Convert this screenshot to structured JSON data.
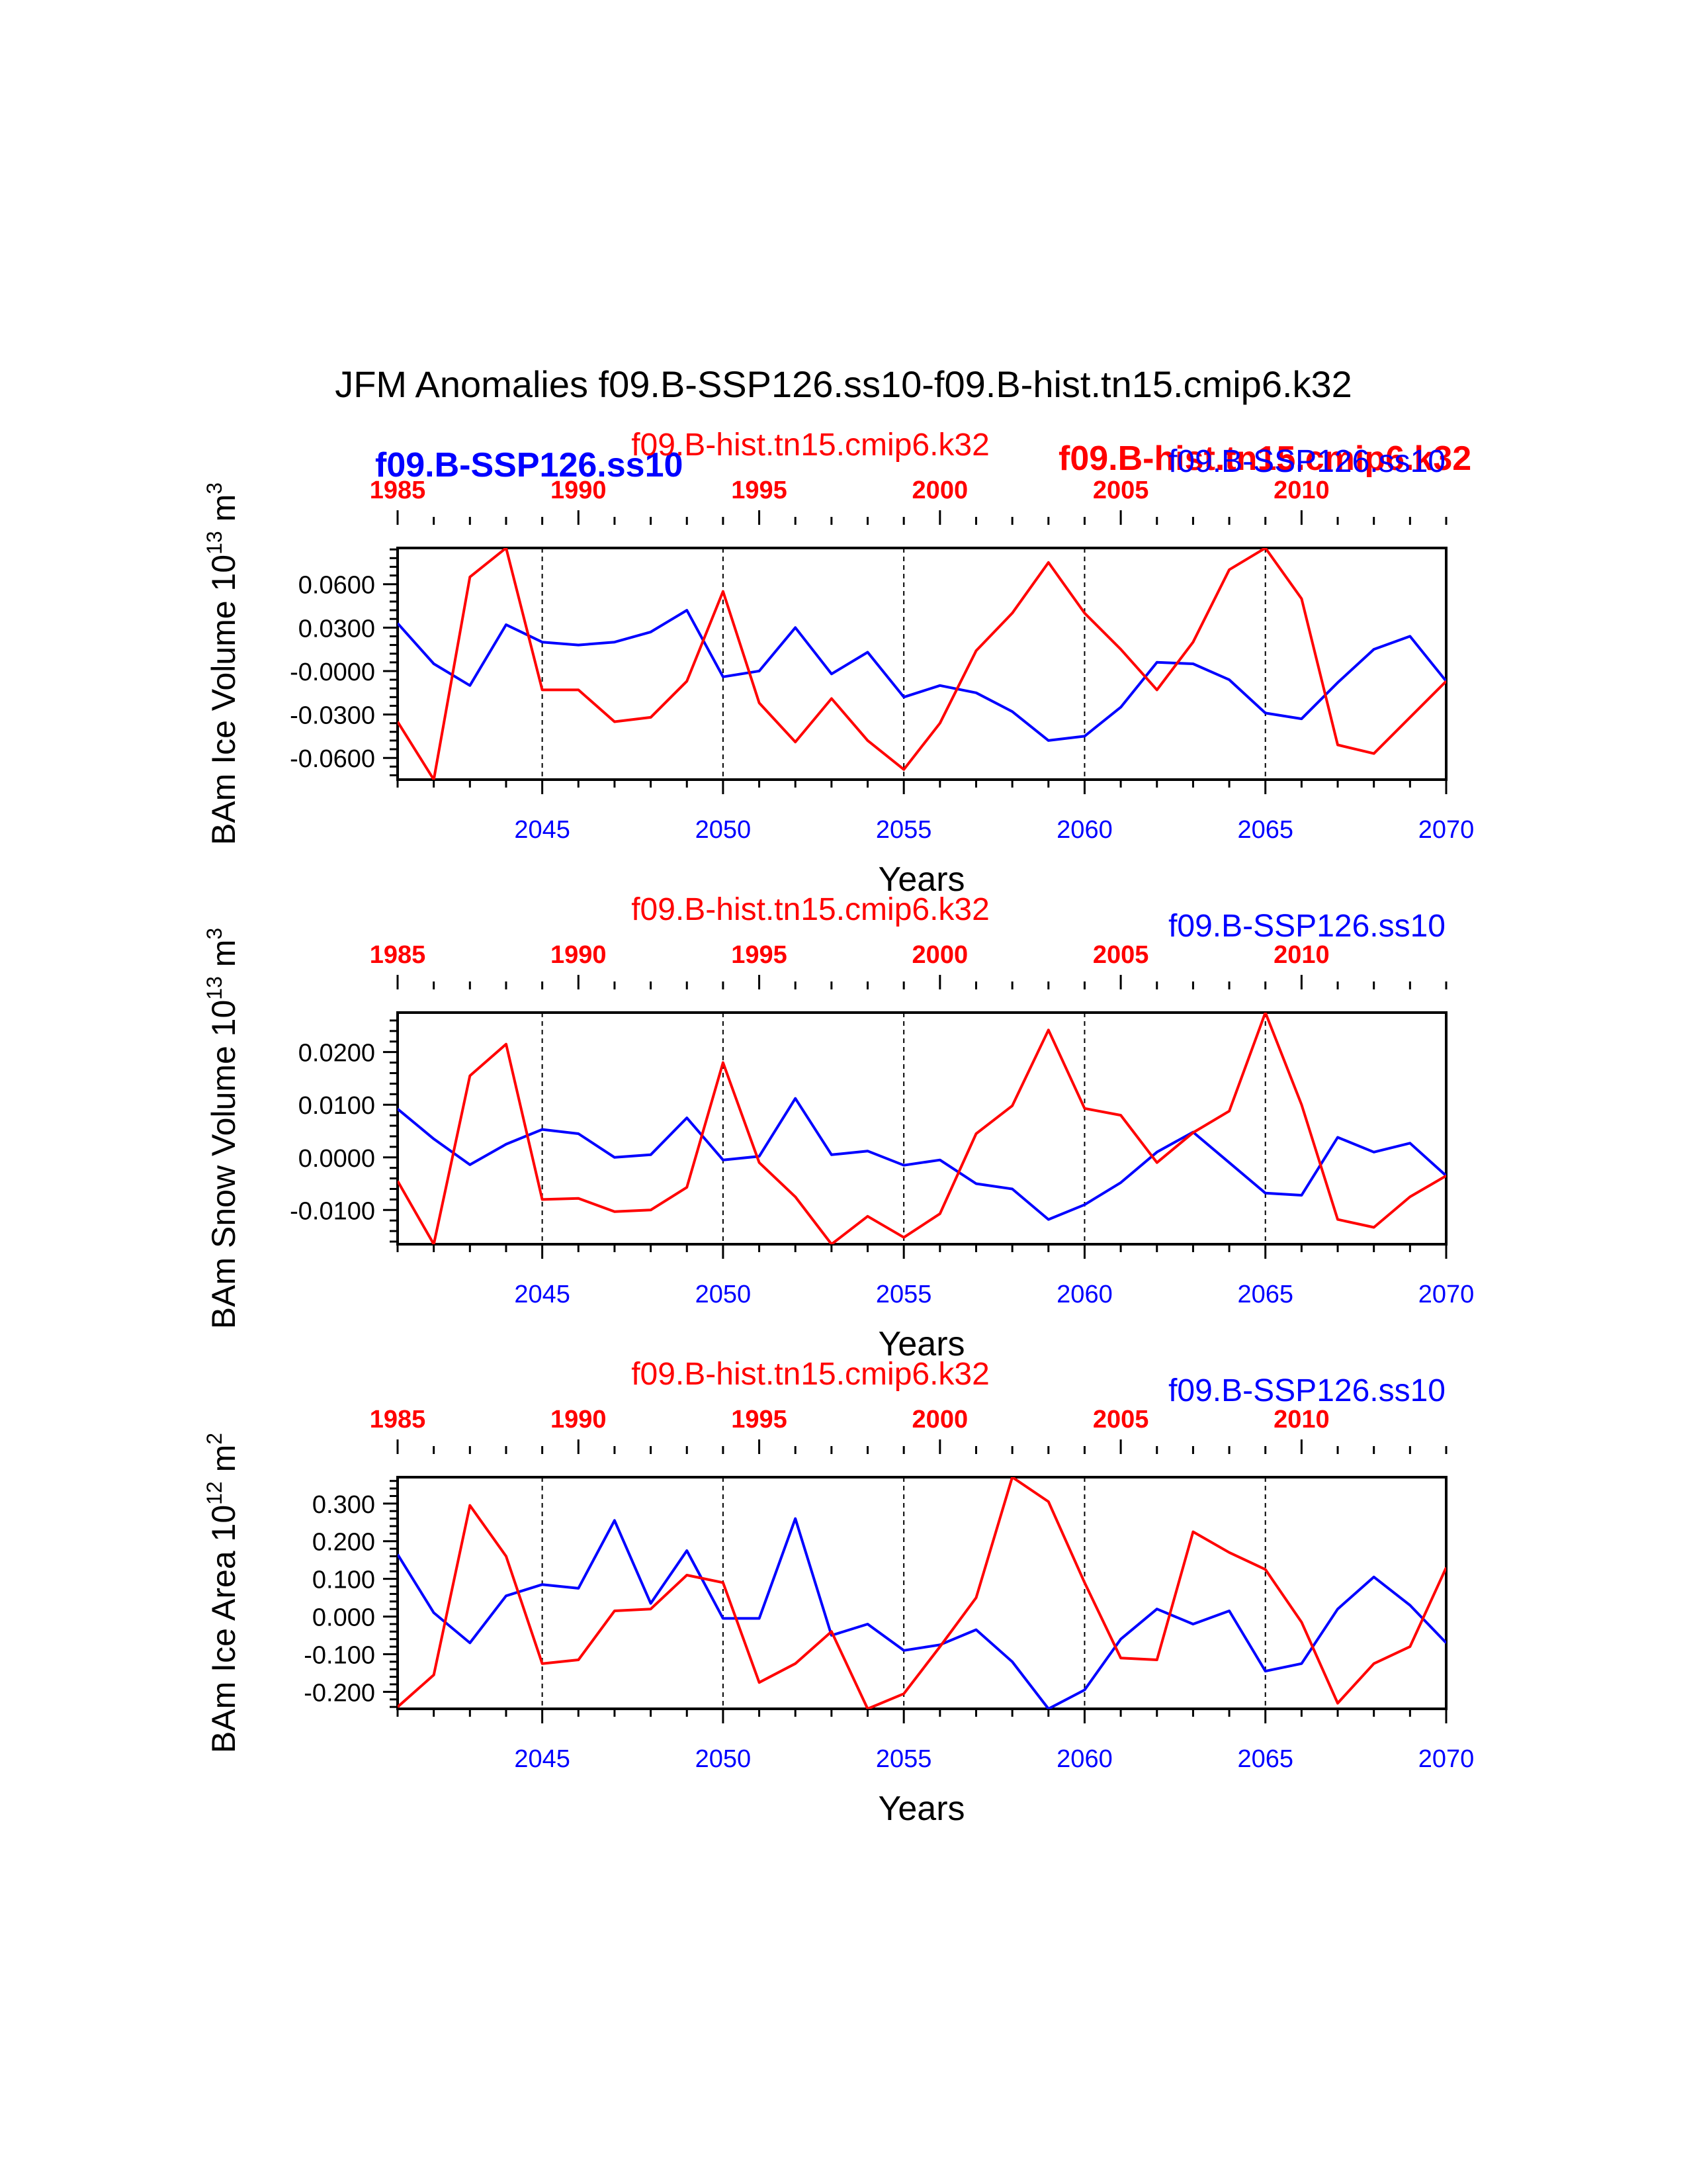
{
  "title": "JFM Anomalies f09.B-SSP126.ss10-f09.B-hist.tn15.cmip6.k32",
  "colors": {
    "future": "#0000ff",
    "hist": "#ff0000",
    "axis": "#000000"
  },
  "legend_overlay": {
    "future_label": "f09.B-SSP126.ss10",
    "hist_label": "f09.B-hist.tn15.cmip6.k32"
  },
  "chart_data": [
    {
      "type": "line",
      "ylabel": "BAm Ice Volume 10^13 m^3",
      "ylabel_main": "BAm Ice Volume 10",
      "ylabel_exp": "13",
      "ylabel_unit": "m",
      "ylabel_unit_exp": "3",
      "xlabel": "Years",
      "ylim": [
        -0.075,
        0.085
      ],
      "yticks": [
        0.06,
        0.03,
        0.0,
        -0.03,
        -0.06
      ],
      "ytick_labels": [
        "0.0600",
        "0.0300",
        "-0.0000",
        "-0.0300",
        "-0.0600"
      ],
      "top_label_hist": "f09.B-hist.tn15.cmip6.k32",
      "top_label_future": "f09.B-SSP126.ss10",
      "series": [
        {
          "name": "f09.B-SSP126.ss10",
          "color": "#0000ff",
          "axis": "bottom",
          "x": [
            2041,
            2042,
            2043,
            2044,
            2045,
            2046,
            2047,
            2048,
            2049,
            2050,
            2051,
            2052,
            2053,
            2054,
            2055,
            2056,
            2057,
            2058,
            2059,
            2060,
            2061,
            2062,
            2063,
            2064,
            2065,
            2066,
            2067,
            2068,
            2069,
            2070
          ],
          "values": [
            0.033,
            0.005,
            -0.01,
            0.032,
            0.02,
            0.018,
            0.02,
            0.027,
            0.042,
            -0.004,
            0.0,
            0.03,
            -0.002,
            0.013,
            -0.018,
            -0.01,
            -0.015,
            -0.028,
            -0.048,
            -0.045,
            -0.025,
            0.006,
            0.005,
            -0.006,
            -0.029,
            -0.033,
            -0.008,
            0.015,
            0.024,
            -0.007
          ]
        },
        {
          "name": "f09.B-hist.tn15.cmip6.k32",
          "color": "#ff0000",
          "axis": "top",
          "x": [
            1985,
            1986,
            1987,
            1988,
            1989,
            1990,
            1991,
            1992,
            1993,
            1994,
            1995,
            1996,
            1997,
            1998,
            1999,
            2000,
            2001,
            2002,
            2003,
            2004,
            2005,
            2006,
            2007,
            2008,
            2009,
            2010,
            2011,
            2012,
            2013,
            2014
          ],
          "values": [
            -0.035,
            -0.075,
            0.065,
            0.085,
            -0.013,
            -0.013,
            -0.035,
            -0.032,
            -0.007,
            0.055,
            -0.022,
            -0.049,
            -0.019,
            -0.048,
            -0.068,
            -0.036,
            0.014,
            0.04,
            0.075,
            0.04,
            0.015,
            -0.013,
            0.02,
            0.07,
            0.085,
            0.05,
            -0.051,
            -0.057,
            -0.032,
            -0.007
          ]
        }
      ]
    },
    {
      "type": "line",
      "ylabel": "BAm Snow Volume 10^13 m^3",
      "ylabel_main": "BAm Snow Volume 10",
      "ylabel_exp": "13",
      "ylabel_unit": "m",
      "ylabel_unit_exp": "3",
      "xlabel": "Years",
      "ylim": [
        -0.0165,
        0.0275
      ],
      "yticks": [
        0.02,
        0.01,
        0.0,
        -0.01
      ],
      "ytick_labels": [
        "0.0200",
        "0.0100",
        "0.0000",
        "-0.0100"
      ],
      "top_label_hist": "f09.B-hist.tn15.cmip6.k32",
      "top_label_future": "f09.B-SSP126.ss10",
      "series": [
        {
          "name": "f09.B-SSP126.ss10",
          "color": "#0000ff",
          "axis": "bottom",
          "x": [
            2041,
            2042,
            2043,
            2044,
            2045,
            2046,
            2047,
            2048,
            2049,
            2050,
            2051,
            2052,
            2053,
            2054,
            2055,
            2056,
            2057,
            2058,
            2059,
            2060,
            2061,
            2062,
            2063,
            2064,
            2065,
            2066,
            2067,
            2068,
            2069,
            2070
          ],
          "values": [
            0.0092,
            0.0035,
            -0.0014,
            0.0025,
            0.0053,
            0.0045,
            0.0,
            0.0005,
            0.0075,
            -0.0005,
            0.0002,
            0.0112,
            0.0005,
            0.0012,
            -0.0015,
            -0.0005,
            -0.005,
            -0.006,
            -0.0118,
            -0.009,
            -0.0048,
            0.001,
            0.0048,
            -0.001,
            -0.0068,
            -0.0072,
            0.0038,
            0.001,
            0.0027,
            -0.0035
          ]
        },
        {
          "name": "f09.B-hist.tn15.cmip6.k32",
          "color": "#ff0000",
          "axis": "top",
          "x": [
            1985,
            1986,
            1987,
            1988,
            1989,
            1990,
            1991,
            1992,
            1993,
            1994,
            1995,
            1996,
            1997,
            1998,
            1999,
            2000,
            2001,
            2002,
            2003,
            2004,
            2005,
            2006,
            2007,
            2008,
            2009,
            2010,
            2011,
            2012,
            2013,
            2014
          ],
          "values": [
            -0.0045,
            -0.0165,
            0.0155,
            0.0215,
            -0.008,
            -0.0078,
            -0.0103,
            -0.01,
            -0.0057,
            0.018,
            -0.001,
            -0.0075,
            -0.0165,
            -0.0112,
            -0.0152,
            -0.0107,
            0.0045,
            0.0098,
            0.0242,
            0.0093,
            0.008,
            -0.001,
            0.0047,
            0.0088,
            0.0275,
            0.01,
            -0.0118,
            -0.0133,
            -0.0075,
            -0.0035
          ]
        }
      ]
    },
    {
      "type": "line",
      "ylabel": "BAm Ice Area 10^12 m^2",
      "ylabel_main": "BAm Ice Area 10",
      "ylabel_exp": "12",
      "ylabel_unit": "m",
      "ylabel_unit_exp": "2",
      "xlabel": "Years",
      "ylim": [
        -0.245,
        0.37
      ],
      "yticks": [
        0.3,
        0.2,
        0.1,
        0.0,
        -0.1,
        -0.2
      ],
      "ytick_labels": [
        "0.300",
        "0.200",
        "0.100",
        "0.000",
        "-0.100",
        "-0.200"
      ],
      "top_label_hist": "f09.B-hist.tn15.cmip6.k32",
      "top_label_future": "f09.B-SSP126.ss10",
      "series": [
        {
          "name": "f09.B-SSP126.ss10",
          "color": "#0000ff",
          "axis": "bottom",
          "x": [
            2041,
            2042,
            2043,
            2044,
            2045,
            2046,
            2047,
            2048,
            2049,
            2050,
            2051,
            2052,
            2053,
            2054,
            2055,
            2056,
            2057,
            2058,
            2059,
            2060,
            2061,
            2062,
            2063,
            2064,
            2065,
            2066,
            2067,
            2068,
            2069,
            2070
          ],
          "values": [
            0.165,
            0.01,
            -0.07,
            0.055,
            0.085,
            0.075,
            0.255,
            0.035,
            0.175,
            -0.005,
            -0.005,
            0.26,
            -0.05,
            -0.02,
            -0.09,
            -0.075,
            -0.035,
            -0.12,
            -0.245,
            -0.195,
            -0.06,
            0.02,
            -0.02,
            0.015,
            -0.145,
            -0.125,
            0.02,
            0.105,
            0.03,
            -0.07
          ]
        },
        {
          "name": "f09.B-hist.tn15.cmip6.k32",
          "color": "#ff0000",
          "axis": "top",
          "x": [
            1985,
            1986,
            1987,
            1988,
            1989,
            1990,
            1991,
            1992,
            1993,
            1994,
            1995,
            1996,
            1997,
            1998,
            1999,
            2000,
            2001,
            2002,
            2003,
            2004,
            2005,
            2006,
            2007,
            2008,
            2009,
            2010,
            2011,
            2012,
            2013,
            2014
          ],
          "values": [
            -0.24,
            -0.155,
            0.295,
            0.16,
            -0.125,
            -0.115,
            0.015,
            0.02,
            0.11,
            0.09,
            -0.175,
            -0.125,
            -0.04,
            -0.245,
            -0.205,
            -0.08,
            0.05,
            0.37,
            0.305,
            0.09,
            -0.11,
            -0.115,
            0.225,
            0.17,
            0.125,
            -0.015,
            -0.23,
            -0.125,
            -0.08,
            0.13
          ]
        }
      ]
    }
  ],
  "bottom_axis": {
    "ticks": [
      2045,
      2050,
      2055,
      2060,
      2065,
      2070
    ],
    "range": [
      2041,
      2070
    ]
  },
  "top_axis": {
    "ticks": [
      1985,
      1990,
      1995,
      2000,
      2005,
      2010
    ],
    "range": [
      1985,
      2014
    ]
  },
  "dashed_lines_at": [
    2045,
    2050,
    2055,
    2060,
    2065
  ]
}
